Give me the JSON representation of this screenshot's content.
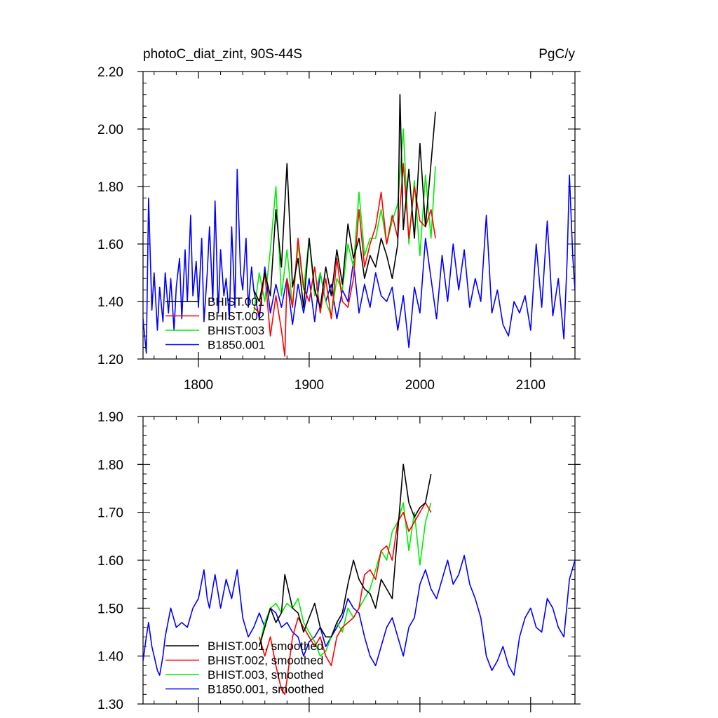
{
  "colors": {
    "BHIST.001": "#000000",
    "BHIST.002": "#ff0000",
    "BHIST.003": "#00ee00",
    "B1850.001": "#0000ff"
  },
  "chart_data": [
    {
      "type": "line",
      "title": "photoC_diat_zint, 90S-44S",
      "units": "PgC/y",
      "xlim": [
        1750,
        2140
      ],
      "ylim": [
        1.2,
        2.2
      ],
      "x_ticks": [
        1800,
        1900,
        2000,
        2100
      ],
      "x_tick_labels": [
        "1800",
        "1900",
        "2000",
        "2100"
      ],
      "y_ticks": [
        1.2,
        1.4,
        1.6,
        1.8,
        2.0,
        2.2
      ],
      "y_tick_labels": [
        "1.20",
        "1.40",
        "1.60",
        "1.80",
        "2.00",
        "2.20"
      ],
      "grid": false,
      "legend_position": "lower-left",
      "series": [
        {
          "name": "BHIST.001",
          "color": "#000000",
          "x": [
            1850,
            1855,
            1860,
            1865,
            1870,
            1875,
            1880,
            1885,
            1890,
            1895,
            1900,
            1905,
            1910,
            1915,
            1920,
            1925,
            1930,
            1935,
            1940,
            1945,
            1950,
            1955,
            1960,
            1965,
            1970,
            1975,
            1980,
            1982,
            1985,
            1990,
            1995,
            2000,
            2005,
            2010,
            2014
          ],
          "y": [
            1.44,
            1.4,
            1.5,
            1.42,
            1.72,
            1.52,
            1.88,
            1.45,
            1.55,
            1.38,
            1.62,
            1.44,
            1.38,
            1.52,
            1.42,
            1.58,
            1.46,
            1.67,
            1.55,
            1.62,
            1.48,
            1.56,
            1.52,
            1.62,
            1.56,
            1.48,
            1.6,
            2.12,
            1.65,
            1.86,
            1.62,
            1.95,
            1.66,
            1.88,
            2.06
          ]
        },
        {
          "name": "BHIST.002",
          "color": "#ff0000",
          "x": [
            1850,
            1855,
            1860,
            1865,
            1870,
            1875,
            1878,
            1880,
            1885,
            1890,
            1895,
            1900,
            1905,
            1910,
            1915,
            1920,
            1925,
            1930,
            1935,
            1940,
            1945,
            1950,
            1955,
            1960,
            1965,
            1970,
            1975,
            1980,
            1985,
            1990,
            1995,
            2000,
            2005,
            2010,
            2014
          ],
          "y": [
            1.38,
            1.36,
            1.5,
            1.28,
            1.42,
            1.3,
            1.21,
            1.48,
            1.38,
            1.62,
            1.45,
            1.4,
            1.52,
            1.36,
            1.48,
            1.34,
            1.55,
            1.4,
            1.38,
            1.48,
            1.72,
            1.52,
            1.6,
            1.66,
            1.78,
            1.6,
            1.7,
            1.62,
            1.88,
            1.62,
            1.8,
            1.68,
            1.66,
            1.72,
            1.62
          ]
        },
        {
          "name": "BHIST.003",
          "color": "#00ee00",
          "x": [
            1850,
            1855,
            1860,
            1865,
            1870,
            1875,
            1880,
            1885,
            1890,
            1895,
            1900,
            1905,
            1910,
            1915,
            1920,
            1925,
            1930,
            1935,
            1940,
            1945,
            1950,
            1955,
            1960,
            1965,
            1970,
            1975,
            1980,
            1985,
            1990,
            1995,
            2000,
            2005,
            2010,
            2014
          ],
          "y": [
            1.36,
            1.5,
            1.4,
            1.58,
            1.8,
            1.42,
            1.58,
            1.38,
            1.6,
            1.44,
            1.62,
            1.42,
            1.5,
            1.4,
            1.35,
            1.48,
            1.44,
            1.6,
            1.52,
            1.78,
            1.56,
            1.62,
            1.62,
            1.72,
            1.6,
            1.68,
            1.74,
            2.0,
            1.6,
            1.82,
            1.56,
            1.84,
            1.62,
            1.87
          ]
        },
        {
          "name": "B1850.001",
          "color": "#0000ff",
          "x": [
            1750,
            1753,
            1755,
            1758,
            1760,
            1763,
            1765,
            1768,
            1770,
            1773,
            1775,
            1778,
            1780,
            1783,
            1785,
            1788,
            1790,
            1793,
            1795,
            1798,
            1800,
            1803,
            1805,
            1808,
            1810,
            1813,
            1815,
            1818,
            1820,
            1823,
            1825,
            1828,
            1830,
            1833,
            1835,
            1838,
            1840,
            1843,
            1845,
            1848,
            1850,
            1855,
            1860,
            1865,
            1870,
            1875,
            1880,
            1885,
            1890,
            1895,
            1900,
            1905,
            1910,
            1915,
            1920,
            1925,
            1930,
            1935,
            1940,
            1945,
            1950,
            1955,
            1960,
            1965,
            1970,
            1975,
            1980,
            1985,
            1990,
            1995,
            2000,
            2005,
            2010,
            2015,
            2020,
            2025,
            2030,
            2035,
            2040,
            2045,
            2050,
            2055,
            2060,
            2065,
            2070,
            2075,
            2080,
            2085,
            2090,
            2095,
            2100,
            2105,
            2110,
            2115,
            2120,
            2125,
            2130,
            2133,
            2135,
            2138,
            2140
          ],
          "y": [
            1.34,
            1.22,
            1.76,
            1.37,
            1.5,
            1.3,
            1.45,
            1.33,
            1.5,
            1.36,
            1.48,
            1.3,
            1.45,
            1.55,
            1.34,
            1.58,
            1.4,
            1.7,
            1.42,
            1.54,
            1.38,
            1.62,
            1.33,
            1.5,
            1.66,
            1.4,
            1.75,
            1.36,
            1.58,
            1.42,
            1.48,
            1.34,
            1.66,
            1.38,
            1.86,
            1.5,
            1.44,
            1.62,
            1.38,
            1.52,
            1.44,
            1.34,
            1.52,
            1.36,
            1.46,
            1.38,
            1.48,
            1.32,
            1.46,
            1.36,
            1.48,
            1.33,
            1.5,
            1.4,
            1.46,
            1.34,
            1.44,
            1.4,
            1.54,
            1.36,
            1.46,
            1.38,
            1.5,
            1.42,
            1.4,
            1.45,
            1.3,
            1.42,
            1.24,
            1.45,
            1.36,
            1.62,
            1.48,
            1.34,
            1.56,
            1.4,
            1.6,
            1.44,
            1.58,
            1.38,
            1.48,
            1.4,
            1.7,
            1.36,
            1.44,
            1.32,
            1.28,
            1.4,
            1.36,
            1.42,
            1.3,
            1.6,
            1.38,
            1.68,
            1.35,
            1.48,
            1.27,
            1.55,
            1.84,
            1.56,
            1.44
          ]
        }
      ]
    },
    {
      "type": "line",
      "title": "",
      "xlim": [
        1750,
        2140
      ],
      "ylim": [
        1.3,
        1.9
      ],
      "x_ticks": [
        1800,
        1900,
        2000,
        2100
      ],
      "x_tick_labels": [
        "",
        "",
        "",
        ""
      ],
      "y_ticks": [
        1.3,
        1.4,
        1.5,
        1.6,
        1.7,
        1.8,
        1.9
      ],
      "y_tick_labels": [
        "1.30",
        "1.40",
        "1.50",
        "1.60",
        "1.70",
        "1.80",
        "1.90"
      ],
      "grid": false,
      "legend_position": "lower-left",
      "series": [
        {
          "name": "BHIST.001, smoothed",
          "color": "#000000",
          "x": [
            1855,
            1860,
            1865,
            1870,
            1875,
            1878,
            1882,
            1885,
            1890,
            1895,
            1900,
            1905,
            1910,
            1915,
            1920,
            1925,
            1930,
            1935,
            1940,
            1945,
            1950,
            1955,
            1960,
            1965,
            1970,
            1975,
            1980,
            1985,
            1990,
            1995,
            2000,
            2005,
            2010
          ],
          "y": [
            1.42,
            1.46,
            1.5,
            1.47,
            1.49,
            1.57,
            1.53,
            1.5,
            1.49,
            1.45,
            1.48,
            1.51,
            1.46,
            1.44,
            1.44,
            1.47,
            1.49,
            1.55,
            1.6,
            1.56,
            1.54,
            1.53,
            1.5,
            1.56,
            1.54,
            1.52,
            1.66,
            1.8,
            1.72,
            1.69,
            1.71,
            1.72,
            1.78
          ]
        },
        {
          "name": "BHIST.002, smoothed",
          "color": "#ff0000",
          "x": [
            1855,
            1860,
            1865,
            1870,
            1875,
            1878,
            1880,
            1885,
            1890,
            1895,
            1900,
            1905,
            1910,
            1915,
            1920,
            1925,
            1930,
            1935,
            1940,
            1945,
            1950,
            1955,
            1960,
            1965,
            1970,
            1975,
            1980,
            1985,
            1990,
            1995,
            2000,
            2005,
            2010
          ],
          "y": [
            1.44,
            1.4,
            1.44,
            1.38,
            1.33,
            1.32,
            1.35,
            1.44,
            1.48,
            1.46,
            1.44,
            1.42,
            1.44,
            1.4,
            1.38,
            1.44,
            1.46,
            1.47,
            1.48,
            1.5,
            1.57,
            1.58,
            1.56,
            1.62,
            1.63,
            1.6,
            1.68,
            1.7,
            1.66,
            1.68,
            1.7,
            1.72,
            1.7
          ]
        },
        {
          "name": "BHIST.003, smoothed",
          "color": "#00ee00",
          "x": [
            1855,
            1860,
            1865,
            1870,
            1875,
            1880,
            1885,
            1890,
            1895,
            1900,
            1905,
            1910,
            1915,
            1920,
            1925,
            1930,
            1935,
            1940,
            1945,
            1950,
            1955,
            1960,
            1965,
            1970,
            1975,
            1980,
            1985,
            1990,
            1995,
            2000,
            2005,
            2010
          ],
          "y": [
            1.42,
            1.47,
            1.5,
            1.51,
            1.49,
            1.51,
            1.5,
            1.52,
            1.47,
            1.45,
            1.43,
            1.4,
            1.41,
            1.44,
            1.47,
            1.45,
            1.5,
            1.48,
            1.5,
            1.52,
            1.54,
            1.58,
            1.62,
            1.6,
            1.66,
            1.68,
            1.72,
            1.62,
            1.7,
            1.59,
            1.68,
            1.72
          ]
        },
        {
          "name": "B1850.001, smoothed",
          "color": "#0000ff",
          "x": [
            1750,
            1753,
            1755,
            1758,
            1760,
            1763,
            1765,
            1768,
            1770,
            1775,
            1780,
            1785,
            1790,
            1795,
            1800,
            1805,
            1808,
            1810,
            1815,
            1820,
            1825,
            1830,
            1835,
            1840,
            1845,
            1850,
            1855,
            1860,
            1865,
            1870,
            1875,
            1880,
            1885,
            1890,
            1895,
            1900,
            1905,
            1910,
            1915,
            1920,
            1925,
            1930,
            1935,
            1940,
            1945,
            1950,
            1955,
            1960,
            1965,
            1970,
            1975,
            1980,
            1985,
            1990,
            1995,
            2000,
            2005,
            2010,
            2015,
            2020,
            2025,
            2030,
            2035,
            2040,
            2045,
            2050,
            2055,
            2060,
            2065,
            2070,
            2075,
            2080,
            2085,
            2090,
            2095,
            2100,
            2105,
            2110,
            2115,
            2120,
            2125,
            2130,
            2135,
            2140
          ],
          "y": [
            1.39,
            1.44,
            1.47,
            1.42,
            1.4,
            1.37,
            1.36,
            1.4,
            1.44,
            1.5,
            1.46,
            1.47,
            1.46,
            1.5,
            1.52,
            1.58,
            1.52,
            1.5,
            1.57,
            1.5,
            1.56,
            1.52,
            1.58,
            1.48,
            1.44,
            1.46,
            1.49,
            1.46,
            1.5,
            1.49,
            1.46,
            1.47,
            1.45,
            1.44,
            1.4,
            1.43,
            1.44,
            1.46,
            1.42,
            1.44,
            1.46,
            1.48,
            1.52,
            1.5,
            1.49,
            1.44,
            1.4,
            1.38,
            1.42,
            1.46,
            1.48,
            1.44,
            1.4,
            1.46,
            1.48,
            1.55,
            1.58,
            1.54,
            1.52,
            1.56,
            1.6,
            1.55,
            1.57,
            1.61,
            1.55,
            1.52,
            1.48,
            1.4,
            1.37,
            1.39,
            1.42,
            1.38,
            1.36,
            1.44,
            1.48,
            1.5,
            1.46,
            1.45,
            1.52,
            1.5,
            1.46,
            1.44,
            1.56,
            1.6
          ]
        }
      ]
    }
  ]
}
